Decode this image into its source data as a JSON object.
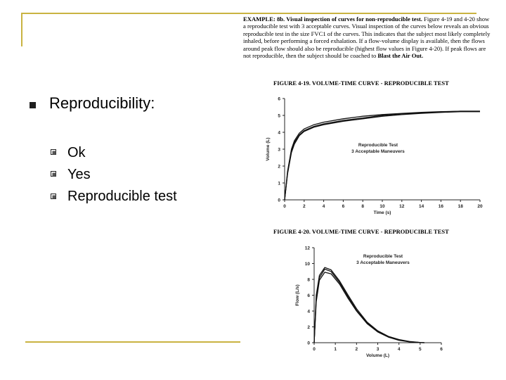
{
  "slide": {
    "title": "Reproducibility:",
    "items": [
      "Ok",
      "Yes",
      "Reproducible test"
    ]
  },
  "example": {
    "heading": "EXAMPLE: 8b. Visual inspection of curves for non-reproducible test.",
    "body": "Figure 4-19 and 4-20 show a reproducible test with 3 acceptable curves. Visual inspection of the curves below reveals an obvious reproducible test in the size FVC1 of the curves. This indicates that the subject most likely completely inhaled, before performing a forced exhalation. If a flow-volume display is available, then the flows around peak flow should also be reproducible (highest flow values in Figure 4-20). If peak flows are not reproducible, then the subject should be coached to",
    "emphasis": "Blast the Air Out."
  },
  "figure1": {
    "caption": "FIGURE 4-19. VOLUME-TIME CURVE - REPRODUCIBLE TEST",
    "annotation_line1": "Reproducible Test",
    "annotation_line2": "3 Acceptable Maneuvers"
  },
  "figure2": {
    "caption": "FIGURE 4-20. VOLUME-TIME CURVE - REPRODUCIBLE TEST",
    "annotation_line1": "Reproducible Test",
    "annotation_line2": "3 Acceptable Maneuvers"
  },
  "chart_data": [
    {
      "type": "line",
      "title": "FIGURE 4-19. VOLUME-TIME CURVE - REPRODUCIBLE TEST",
      "xlabel": "Time (s)",
      "ylabel": "Volume (L)",
      "xlim": [
        0,
        20
      ],
      "ylim": [
        0,
        6
      ],
      "xticks": [
        0,
        2,
        4,
        6,
        8,
        10,
        12,
        14,
        16,
        18,
        20
      ],
      "yticks": [
        0,
        1,
        2,
        3,
        4,
        5,
        6
      ],
      "series": [
        {
          "x": [
            0,
            0.3,
            0.7,
            1,
            1.5,
            2,
            3,
            4,
            6,
            8,
            10,
            12,
            14,
            16,
            18,
            20
          ],
          "y": [
            0,
            1.6,
            2.9,
            3.4,
            3.85,
            4.1,
            4.35,
            4.5,
            4.7,
            4.85,
            5.0,
            5.1,
            5.15,
            5.2,
            5.25,
            5.25
          ]
        },
        {
          "x": [
            0,
            0.3,
            0.7,
            1,
            1.5,
            2,
            3,
            4,
            6,
            8,
            10,
            12,
            14,
            16,
            18,
            20
          ],
          "y": [
            0,
            1.7,
            3.0,
            3.5,
            3.95,
            4.2,
            4.45,
            4.6,
            4.8,
            4.95,
            5.05,
            5.12,
            5.18,
            5.22,
            5.25,
            5.25
          ]
        },
        {
          "x": [
            0,
            0.3,
            0.7,
            1,
            1.5,
            2,
            3,
            4,
            6,
            8,
            10,
            12,
            14,
            16,
            18,
            20
          ],
          "y": [
            0,
            1.55,
            2.8,
            3.3,
            3.8,
            4.05,
            4.3,
            4.45,
            4.65,
            4.8,
            4.95,
            5.05,
            5.12,
            5.18,
            5.22,
            5.22
          ]
        }
      ]
    },
    {
      "type": "line",
      "title": "FIGURE 4-20. VOLUME-TIME CURVE - REPRODUCIBLE TEST",
      "xlabel": "Volume (L)",
      "ylabel": "Flow (L/s)",
      "xlim": [
        0,
        6
      ],
      "ylim": [
        0,
        12
      ],
      "xticks": [
        0,
        1,
        2,
        3,
        4,
        5,
        6
      ],
      "yticks": [
        0,
        2,
        4,
        6,
        8,
        10,
        12
      ],
      "series": [
        {
          "x": [
            0,
            0.1,
            0.25,
            0.5,
            0.8,
            1.2,
            1.6,
            2.0,
            2.5,
            3.0,
            3.5,
            4.0,
            4.5,
            5.0,
            5.2
          ],
          "y": [
            0,
            6.0,
            8.5,
            9.5,
            9.2,
            7.8,
            6.0,
            4.3,
            2.6,
            1.5,
            0.8,
            0.4,
            0.15,
            0.03,
            0
          ]
        },
        {
          "x": [
            0,
            0.1,
            0.25,
            0.5,
            0.8,
            1.2,
            1.6,
            2.0,
            2.5,
            3.0,
            3.5,
            4.0,
            4.5,
            5.0,
            5.2
          ],
          "y": [
            0,
            5.6,
            8.2,
            9.3,
            9.0,
            7.6,
            5.8,
            4.1,
            2.5,
            1.4,
            0.75,
            0.35,
            0.12,
            0.02,
            0
          ]
        },
        {
          "x": [
            0,
            0.1,
            0.25,
            0.5,
            0.8,
            1.2,
            1.6,
            2.0,
            2.5,
            3.0,
            3.5,
            4.0,
            4.5,
            5.0,
            5.2
          ],
          "y": [
            0,
            5.2,
            7.9,
            8.9,
            8.7,
            7.4,
            5.6,
            4.0,
            2.4,
            1.35,
            0.7,
            0.3,
            0.1,
            0.02,
            0
          ]
        }
      ]
    }
  ],
  "colors": {
    "accent": "#c9b341",
    "bullet": "#1f1f1f",
    "curve": "#111111"
  }
}
